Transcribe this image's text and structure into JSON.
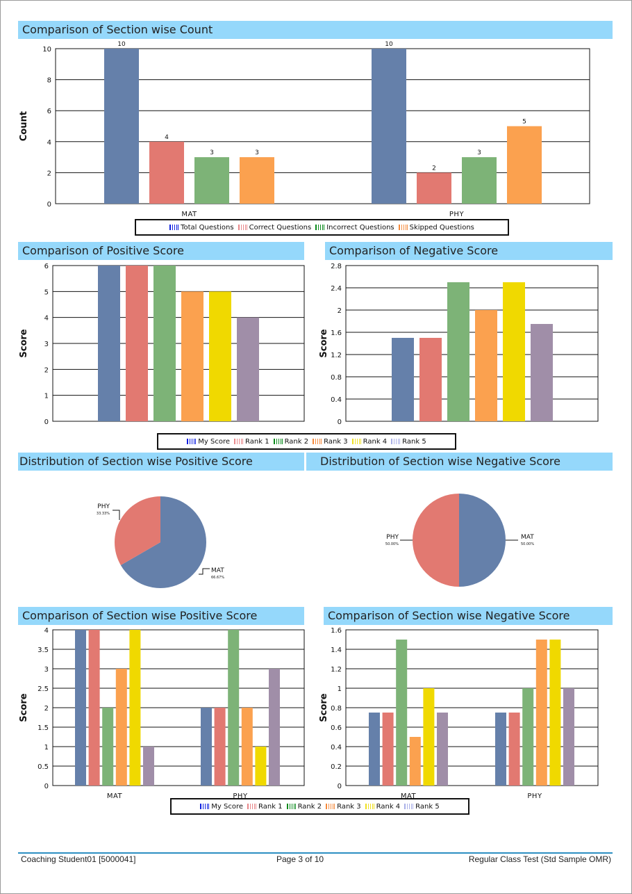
{
  "colors": {
    "blue": "#6580aa",
    "salmon": "#e27971",
    "green": "#7db377",
    "orange": "#fba14f",
    "yellow": "#f0d900",
    "purple": "#a08ea8",
    "header_bg": "#95d8fb"
  },
  "legend_icon_colors": [
    "#0b1de0",
    "#e8878a",
    "#0a8a1c",
    "#f58a3c",
    "#f0e020",
    "#aab0e8"
  ],
  "sections": {
    "count": "Comparison of Section wise Count",
    "positive": "Comparison of Positive Score",
    "negative": "Comparison of Negative Score",
    "dist_positive": "Distribution of Section wise Positive Score",
    "dist_negative": "Distribution of Section wise Negative Score",
    "sec_positive": "Comparison of Section wise Positive Score",
    "sec_negative": "Comparison of Section wise Negative Score"
  },
  "legends": {
    "count": [
      "Total Questions",
      "Correct Questions",
      "Incorrect Questions",
      "Skipped Questions"
    ],
    "ranks": [
      "My Score",
      "Rank 1",
      "Rank 2",
      "Rank 3",
      "Rank 4",
      "Rank 5"
    ]
  },
  "chart_data": [
    {
      "id": "count",
      "type": "bar",
      "categories": [
        "MAT",
        "PHY"
      ],
      "ylabel": "Count",
      "ylim": [
        0,
        10
      ],
      "yticks": [
        "0",
        "2",
        "4",
        "6",
        "8",
        "10"
      ],
      "data_labels": true,
      "series": [
        {
          "name": "Total Questions",
          "values": [
            10,
            10
          ]
        },
        {
          "name": "Correct Questions",
          "values": [
            4,
            2
          ]
        },
        {
          "name": "Incorrect Questions",
          "values": [
            3,
            3
          ]
        },
        {
          "name": "Skipped Questions",
          "values": [
            3,
            5
          ]
        }
      ]
    },
    {
      "id": "positive",
      "type": "bar",
      "ylabel": "Score",
      "ylim": [
        0,
        6
      ],
      "yticks": [
        "0",
        "1",
        "2",
        "3",
        "4",
        "5",
        "6"
      ],
      "series": [
        {
          "name": "My Score",
          "value": 6
        },
        {
          "name": "Rank 1",
          "value": 6
        },
        {
          "name": "Rank 2",
          "value": 6
        },
        {
          "name": "Rank 3",
          "value": 5
        },
        {
          "name": "Rank 4",
          "value": 5
        },
        {
          "name": "Rank 5",
          "value": 4
        }
      ]
    },
    {
      "id": "negative",
      "type": "bar",
      "ylabel": "Score",
      "ylim": [
        0,
        2.8
      ],
      "yticks": [
        "0",
        "0.4",
        "0.8",
        "1.2",
        "1.6",
        "2",
        "2.4",
        "2.8"
      ],
      "series": [
        {
          "name": "My Score",
          "value": 1.5
        },
        {
          "name": "Rank 1",
          "value": 1.5
        },
        {
          "name": "Rank 2",
          "value": 2.5
        },
        {
          "name": "Rank 3",
          "value": 2
        },
        {
          "name": "Rank 4",
          "value": 2.5
        },
        {
          "name": "Rank 5",
          "value": 1.75
        }
      ]
    },
    {
      "id": "dist_positive",
      "type": "pie",
      "slices": [
        {
          "label": "MAT",
          "pct": "66.67%",
          "value": 66.67
        },
        {
          "label": "PHY",
          "pct": "33.33%",
          "value": 33.33
        }
      ]
    },
    {
      "id": "dist_negative",
      "type": "pie",
      "slices": [
        {
          "label": "MAT",
          "pct": "50.00%",
          "value": 50
        },
        {
          "label": "PHY",
          "pct": "50.00%",
          "value": 50
        }
      ]
    },
    {
      "id": "sec_positive",
      "type": "bar",
      "categories": [
        "MAT",
        "PHY"
      ],
      "ylabel": "Score",
      "ylim": [
        0,
        4
      ],
      "yticks": [
        "0",
        "0.5",
        "1",
        "1.5",
        "2",
        "2.5",
        "3",
        "3.5",
        "4"
      ],
      "series": [
        {
          "name": "My Score",
          "values": [
            4,
            2
          ]
        },
        {
          "name": "Rank 1",
          "values": [
            4,
            2
          ]
        },
        {
          "name": "Rank 2",
          "values": [
            2,
            4
          ]
        },
        {
          "name": "Rank 3",
          "values": [
            3,
            2
          ]
        },
        {
          "name": "Rank 4",
          "values": [
            4,
            1
          ]
        },
        {
          "name": "Rank 5",
          "values": [
            1,
            3
          ]
        }
      ]
    },
    {
      "id": "sec_negative",
      "type": "bar",
      "categories": [
        "MAT",
        "PHY"
      ],
      "ylabel": "Score",
      "ylim": [
        0,
        1.6
      ],
      "yticks": [
        "0",
        "0.2",
        "0.4",
        "0.6",
        "0.8",
        "1",
        "1.2",
        "1.4",
        "1.6"
      ],
      "series": [
        {
          "name": "My Score",
          "values": [
            0.75,
            0.75
          ]
        },
        {
          "name": "Rank 1",
          "values": [
            0.75,
            0.75
          ]
        },
        {
          "name": "Rank 2",
          "values": [
            1.5,
            1
          ]
        },
        {
          "name": "Rank 3",
          "values": [
            0.5,
            1.5
          ]
        },
        {
          "name": "Rank 4",
          "values": [
            1,
            1.5
          ]
        },
        {
          "name": "Rank 5",
          "values": [
            0.75,
            1
          ]
        }
      ]
    }
  ],
  "footer": {
    "left": "Coaching Student01 [5000041]",
    "center": "Page 3 of 10",
    "right": "Regular Class Test (Std Sample OMR)"
  }
}
